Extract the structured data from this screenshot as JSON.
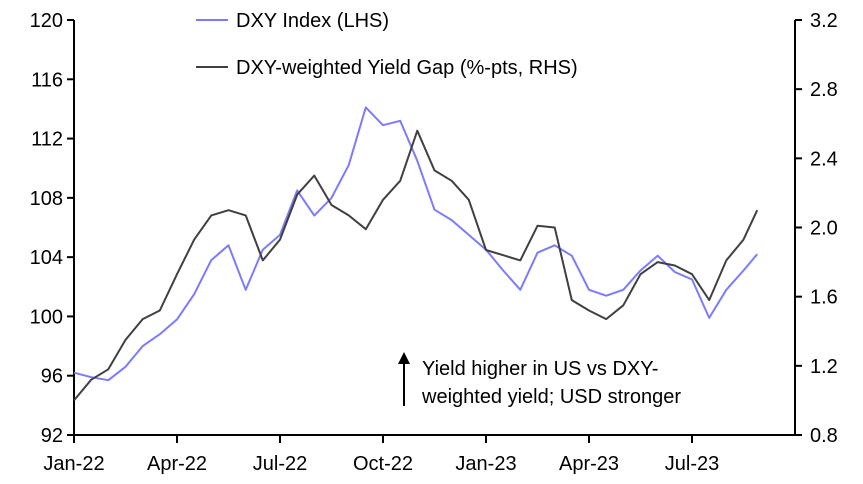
{
  "chart_data": {
    "type": "line",
    "title": "",
    "x_unit": "months since Jan-2022",
    "x_ticks": [
      0,
      3,
      6,
      9,
      12,
      15,
      18
    ],
    "x_tick_labels": [
      "Jan-22",
      "Apr-22",
      "Jul-22",
      "Oct-22",
      "Jan-23",
      "Apr-23",
      "Jul-23"
    ],
    "xlim": [
      0,
      21
    ],
    "left_axis": {
      "ylim": [
        92,
        120
      ],
      "ticks": [
        92,
        96,
        100,
        104,
        108,
        112,
        116,
        120
      ]
    },
    "right_axis": {
      "ylim": [
        0.8,
        3.2
      ],
      "ticks_labels": [
        "0.8",
        "1.2",
        "1.6",
        "2.0",
        "2.4",
        "2.8",
        "3.2"
      ],
      "ticks": [
        0.8,
        1.2,
        1.6,
        2.0,
        2.4,
        2.8,
        3.2
      ]
    },
    "x": [
      0,
      0.5,
      1,
      1.5,
      2,
      2.5,
      3,
      3.5,
      4,
      4.5,
      5,
      5.5,
      6,
      6.5,
      7,
      7.5,
      8,
      8.5,
      9,
      9.5,
      10,
      10.5,
      11,
      11.5,
      12,
      12.5,
      13,
      13.5,
      14,
      14.5,
      15,
      15.5,
      16,
      16.5,
      17,
      17.5,
      18,
      18.5,
      19,
      19.5,
      19.9
    ],
    "series": [
      {
        "name": "DXY Index (LHS)",
        "axis": "left",
        "color": "#7b7bff",
        "values": [
          96.2,
          95.9,
          95.7,
          96.6,
          98.0,
          98.8,
          99.8,
          101.5,
          103.8,
          104.8,
          101.8,
          104.5,
          105.5,
          108.5,
          106.8,
          108.0,
          110.2,
          114.1,
          112.9,
          113.2,
          110.5,
          107.2,
          106.5,
          105.5,
          104.5,
          103.1,
          101.8,
          104.3,
          104.8,
          104.1,
          101.8,
          101.4,
          101.8,
          103.1,
          104.1,
          103.0,
          102.5,
          99.9,
          101.8,
          103.1,
          104.2
        ]
      },
      {
        "name": "DXY-weighted Yield Gap (%-pts, RHS)",
        "axis": "right",
        "color": "#404040",
        "values": [
          1.0,
          1.12,
          1.18,
          1.35,
          1.47,
          1.52,
          1.73,
          1.93,
          2.07,
          2.1,
          2.07,
          1.81,
          1.93,
          2.19,
          2.3,
          2.13,
          2.07,
          1.99,
          2.16,
          2.27,
          2.56,
          2.33,
          2.27,
          2.16,
          1.87,
          1.84,
          1.81,
          2.01,
          2.0,
          1.58,
          1.52,
          1.47,
          1.55,
          1.73,
          1.8,
          1.78,
          1.73,
          1.58,
          1.81,
          1.93,
          2.1
        ]
      }
    ],
    "legend": {
      "placement": "top-center",
      "entries": [
        "DXY Index (LHS)",
        "DXY-weighted Yield Gap (%-pts, RHS)"
      ]
    },
    "annotation": {
      "line1": "Yield higher in US vs DXY-",
      "line2": "weighted yield; USD stronger"
    },
    "grid": false
  }
}
